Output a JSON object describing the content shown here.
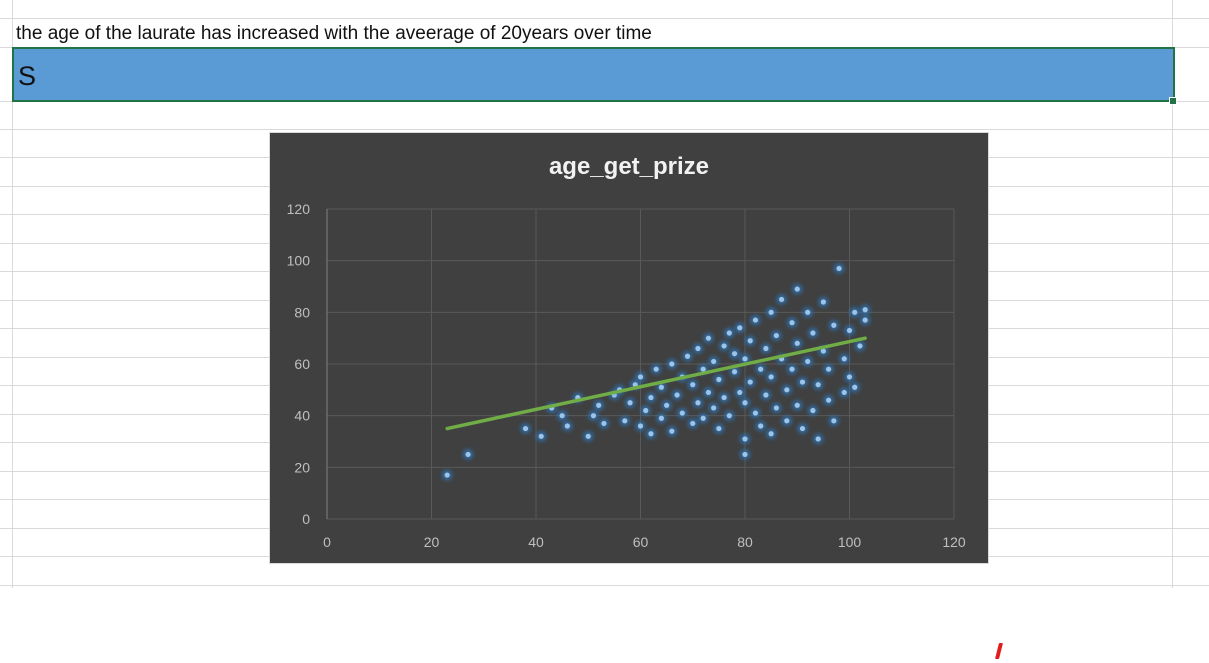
{
  "sheet": {
    "note_text": "the age of the laurate has increased with the aveerage of 20years over time",
    "selected_cell_text": "S",
    "selection_color": "#5b9bd5",
    "selection_border_color": "#217346"
  },
  "chart_data": {
    "type": "scatter",
    "title": "age_get_prize",
    "xlabel": "",
    "ylabel": "",
    "xlim": [
      0,
      120
    ],
    "ylim": [
      0,
      120
    ],
    "xticks": [
      "0",
      "20",
      "40",
      "60",
      "80",
      "100",
      "120"
    ],
    "yticks": [
      "0",
      "20",
      "40",
      "60",
      "80",
      "100",
      "120"
    ],
    "grid": true,
    "background_color": "#404040",
    "point_color": "#9dc3e6",
    "trendline_color": "#70ad47",
    "series": [
      {
        "points": [
          [
            23,
            17
          ],
          [
            27,
            25
          ],
          [
            38,
            35
          ],
          [
            41,
            32
          ],
          [
            43,
            43
          ],
          [
            45,
            40
          ],
          [
            46,
            36
          ],
          [
            48,
            47
          ],
          [
            50,
            32
          ],
          [
            51,
            40
          ],
          [
            52,
            44
          ],
          [
            53,
            37
          ],
          [
            55,
            48
          ],
          [
            56,
            50
          ],
          [
            57,
            38
          ],
          [
            58,
            45
          ],
          [
            59,
            52
          ],
          [
            60,
            36
          ],
          [
            60,
            55
          ],
          [
            61,
            42
          ],
          [
            62,
            47
          ],
          [
            62,
            33
          ],
          [
            63,
            58
          ],
          [
            64,
            39
          ],
          [
            64,
            51
          ],
          [
            65,
            44
          ],
          [
            66,
            60
          ],
          [
            66,
            34
          ],
          [
            67,
            48
          ],
          [
            68,
            55
          ],
          [
            68,
            41
          ],
          [
            69,
            63
          ],
          [
            70,
            37
          ],
          [
            70,
            52
          ],
          [
            71,
            45
          ],
          [
            71,
            66
          ],
          [
            72,
            58
          ],
          [
            72,
            39
          ],
          [
            73,
            49
          ],
          [
            73,
            70
          ],
          [
            74,
            43
          ],
          [
            74,
            61
          ],
          [
            75,
            54
          ],
          [
            75,
            35
          ],
          [
            76,
            67
          ],
          [
            76,
            47
          ],
          [
            77,
            72
          ],
          [
            77,
            40
          ],
          [
            78,
            57
          ],
          [
            78,
            64
          ],
          [
            79,
            49
          ],
          [
            79,
            74
          ],
          [
            80,
            31
          ],
          [
            80,
            45
          ],
          [
            80,
            62
          ],
          [
            80,
            25
          ],
          [
            81,
            69
          ],
          [
            81,
            53
          ],
          [
            82,
            41
          ],
          [
            82,
            77
          ],
          [
            83,
            58
          ],
          [
            83,
            36
          ],
          [
            84,
            66
          ],
          [
            84,
            48
          ],
          [
            85,
            80
          ],
          [
            85,
            33
          ],
          [
            85,
            55
          ],
          [
            86,
            71
          ],
          [
            86,
            43
          ],
          [
            87,
            62
          ],
          [
            87,
            85
          ],
          [
            88,
            50
          ],
          [
            88,
            38
          ],
          [
            89,
            76
          ],
          [
            89,
            58
          ],
          [
            90,
            44
          ],
          [
            90,
            68
          ],
          [
            90,
            89
          ],
          [
            91,
            35
          ],
          [
            91,
            53
          ],
          [
            92,
            80
          ],
          [
            92,
            61
          ],
          [
            93,
            42
          ],
          [
            93,
            72
          ],
          [
            94,
            31
          ],
          [
            94,
            52
          ],
          [
            95,
            65
          ],
          [
            95,
            84
          ],
          [
            96,
            46
          ],
          [
            96,
            58
          ],
          [
            97,
            38
          ],
          [
            97,
            75
          ],
          [
            98,
            97
          ],
          [
            99,
            62
          ],
          [
            99,
            49
          ],
          [
            100,
            73
          ],
          [
            100,
            55
          ],
          [
            101,
            80
          ],
          [
            101,
            51
          ],
          [
            102,
            67
          ],
          [
            103,
            81
          ],
          [
            103,
            77
          ]
        ]
      }
    ],
    "trendline": {
      "x": [
        23,
        103
      ],
      "y": [
        35,
        70
      ]
    }
  }
}
